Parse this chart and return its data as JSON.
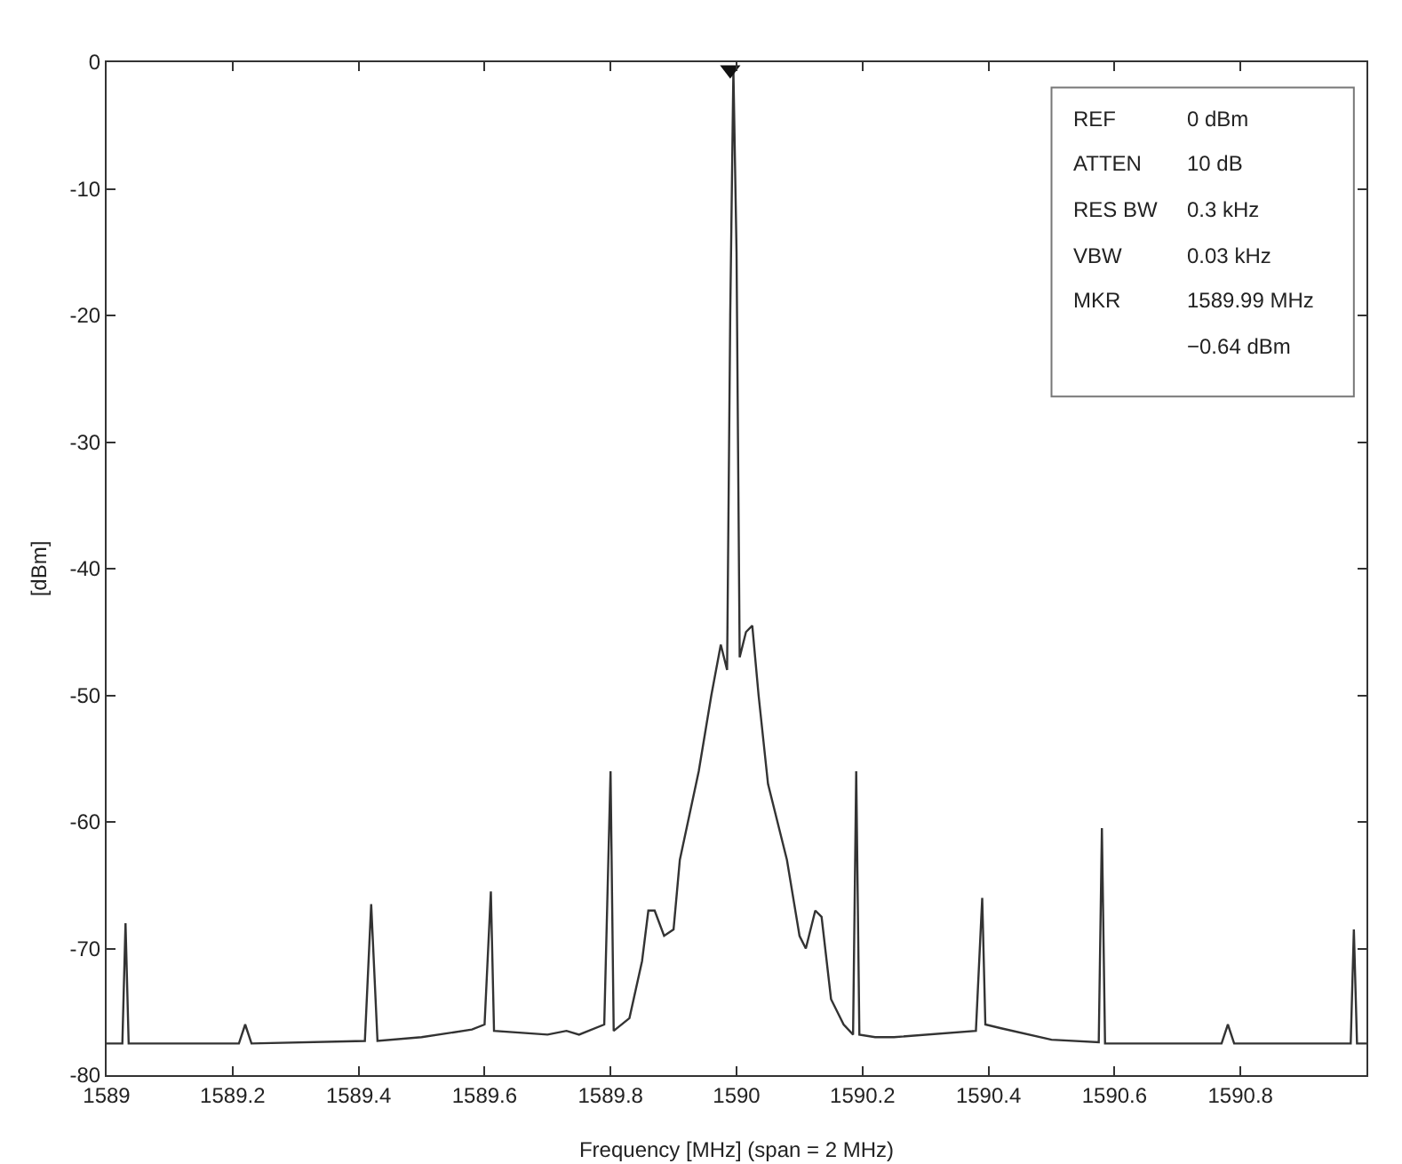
{
  "chart_data": {
    "type": "line",
    "xlabel": "Frequency [MHz] (span = 2 MHz)",
    "ylabel": "[dBm]",
    "xlim": [
      1589,
      1591
    ],
    "xticks": [
      1589,
      1589.2,
      1589.4,
      1589.6,
      1589.8,
      1590,
      1590.2,
      1590.4,
      1590.6,
      1590.8
    ],
    "ylim": [
      -80,
      0
    ],
    "yticks": [
      -80,
      -70,
      -60,
      -50,
      -40,
      -30,
      -20,
      -10,
      0
    ],
    "grid": false,
    "series": [
      {
        "color": "#333333",
        "line_style": "solid",
        "marker": "none",
        "x": [
          1589.0,
          1589.025,
          1589.03,
          1589.035,
          1589.21,
          1589.22,
          1589.23,
          1589.41,
          1589.42,
          1589.43,
          1589.5,
          1589.58,
          1589.6,
          1589.61,
          1589.615,
          1589.7,
          1589.73,
          1589.75,
          1589.79,
          1589.8,
          1589.805,
          1589.83,
          1589.85,
          1589.86,
          1589.87,
          1589.885,
          1589.9,
          1589.91,
          1589.94,
          1589.96,
          1589.975,
          1589.985,
          1589.99,
          1589.995,
          1590.0,
          1590.005,
          1590.015,
          1590.025,
          1590.035,
          1590.05,
          1590.08,
          1590.1,
          1590.11,
          1590.125,
          1590.135,
          1590.15,
          1590.17,
          1590.185,
          1590.19,
          1590.195,
          1590.22,
          1590.25,
          1590.38,
          1590.39,
          1590.395,
          1590.42,
          1590.5,
          1590.575,
          1590.58,
          1590.585,
          1590.77,
          1590.78,
          1590.79,
          1590.975,
          1590.98,
          1590.985,
          1591.0
        ],
        "values": [
          -77.5,
          -77.5,
          -68,
          -77.5,
          -77.5,
          -76,
          -77.5,
          -77.3,
          -66.5,
          -77.3,
          -77,
          -76.4,
          -76,
          -65.5,
          -76.5,
          -76.8,
          -76.5,
          -76.8,
          -76,
          -56,
          -76.5,
          -75.5,
          -71,
          -67,
          -67,
          -69,
          -68.5,
          -63,
          -56,
          -50,
          -46,
          -48,
          -20,
          -0.6,
          -15,
          -47,
          -45,
          -44.5,
          -50,
          -57,
          -63,
          -69,
          -70,
          -67,
          -67.5,
          -74,
          -76,
          -76.8,
          -56,
          -76.8,
          -77,
          -77,
          -76.5,
          -66,
          -76,
          -76.3,
          -77.2,
          -77.4,
          -60.5,
          -77.5,
          -77.5,
          -76,
          -77.5,
          -77.5,
          -68.5,
          -77.5,
          -77.5
        ]
      },
      {
        "type": "scatter",
        "color": "#111111",
        "marker": "triangle",
        "x": [
          1589.99
        ],
        "values": [
          -0.6
        ]
      }
    ],
    "annotations": [
      "REF",
      "0 dBm",
      "ATTEN",
      "10 dB",
      "RES BW",
      "0.3 kHz",
      "VBW",
      "0.03 kHz",
      "MKR",
      "1589.99 MHz",
      "−0.64 dBm"
    ]
  }
}
